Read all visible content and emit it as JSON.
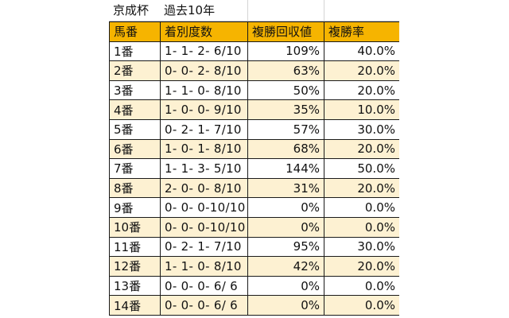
{
  "title": {
    "race": "京成杯",
    "period": "過去10年"
  },
  "columns": [
    "馬番",
    "着別度数",
    "複勝回収値",
    "複勝率"
  ],
  "rows": [
    {
      "gate": "1番",
      "record": "1- 1- 2- 6/10",
      "return": "109%",
      "rate": "40.0%"
    },
    {
      "gate": "2番",
      "record": "0- 0- 2- 8/10",
      "return": "63%",
      "rate": "20.0%"
    },
    {
      "gate": "3番",
      "record": "1- 1- 0- 8/10",
      "return": "50%",
      "rate": "20.0%"
    },
    {
      "gate": "4番",
      "record": "1- 0- 0- 9/10",
      "return": "35%",
      "rate": "10.0%"
    },
    {
      "gate": "5番",
      "record": "0- 2- 1- 7/10",
      "return": "57%",
      "rate": "30.0%"
    },
    {
      "gate": "6番",
      "record": "1- 0- 1- 8/10",
      "return": "68%",
      "rate": "20.0%"
    },
    {
      "gate": "7番",
      "record": "1- 1- 3- 5/10",
      "return": "144%",
      "rate": "50.0%"
    },
    {
      "gate": "8番",
      "record": "2- 0- 0- 8/10",
      "return": "31%",
      "rate": "20.0%"
    },
    {
      "gate": "9番",
      "record": "0- 0- 0-10/10",
      "return": "0%",
      "rate": "0.0%"
    },
    {
      "gate": "10番",
      "record": "0- 0- 0-10/10",
      "return": "0%",
      "rate": "0.0%"
    },
    {
      "gate": "11番",
      "record": "0- 2- 1- 7/10",
      "return": "95%",
      "rate": "30.0%"
    },
    {
      "gate": "12番",
      "record": "1- 1- 0- 8/10",
      "return": "42%",
      "rate": "20.0%"
    },
    {
      "gate": "13番",
      "record": "0- 0- 0- 6/ 6",
      "return": "0%",
      "rate": "0.0%"
    },
    {
      "gate": "14番",
      "record": "0- 0- 0- 6/ 6",
      "return": "0%",
      "rate": "0.0%"
    }
  ],
  "colors": {
    "header_fill": "#f6b400",
    "alt_row_fill": "#fdf1d2",
    "border": "#1a1a1a"
  }
}
